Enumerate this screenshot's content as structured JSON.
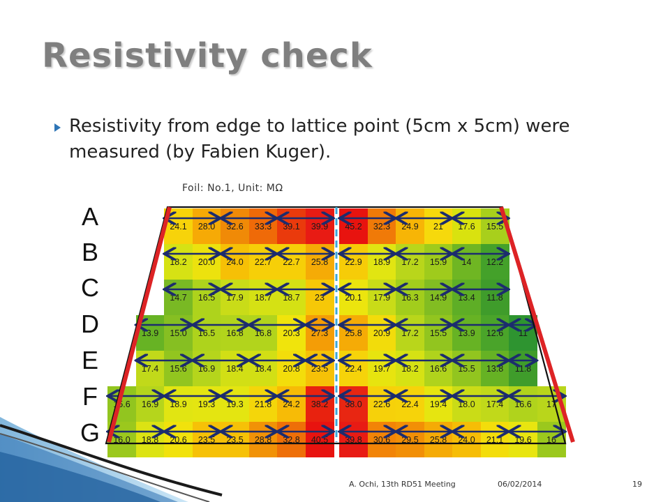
{
  "title": "Resistivity check",
  "bullet": "Resistivity from edge to lattice point (5cm x 5cm) were measured (by Fabien Kuger).",
  "caption": "Foil: No.1, Unit: MΩ",
  "rows": [
    {
      "label": "A",
      "left": [
        "24.1",
        "28.0",
        "32.6",
        "33.3",
        "39.1",
        "39.9"
      ],
      "right": [
        "45.2",
        "32.3",
        "24.9",
        "21",
        "17.6",
        "15.5"
      ],
      "left_colors": [
        "#f7d30a",
        "#f6aa06",
        "#f08a07",
        "#ef6a08",
        "#ea3a0c",
        "#e81b14"
      ],
      "right_colors": [
        "#e8130f",
        "#f07a08",
        "#f7b506",
        "#f6d90c",
        "#d9e20f",
        "#a8cf1c"
      ]
    },
    {
      "label": "B",
      "left": [
        "18.2",
        "20.0",
        "24.0",
        "22.7",
        "22.7",
        "25.8"
      ],
      "right": [
        "22.9",
        "18.9",
        "17.2",
        "15.9",
        "14",
        "12.2"
      ],
      "left_colors": [
        "#d6e214",
        "#ece20e",
        "#f6c006",
        "#f6cf08",
        "#f6cf08",
        "#f5ab06"
      ],
      "right_colors": [
        "#f6cc08",
        "#e1e512",
        "#b9d61b",
        "#9fcb1c",
        "#6fb623",
        "#44a12a"
      ]
    },
    {
      "label": "C",
      "left": [
        "14.7",
        "16.5",
        "17.9",
        "18.7",
        "18.7",
        "23"
      ],
      "right": [
        "20.1",
        "17.9",
        "16.3",
        "14.9",
        "13.4",
        "11.8"
      ],
      "left_colors": [
        "#79b924",
        "#aed31c",
        "#c9dc18",
        "#d5e114",
        "#d5e114",
        "#f6c807"
      ],
      "right_colors": [
        "#ece50e",
        "#c9dc18",
        "#a2cd1c",
        "#82bd22",
        "#5eae26",
        "#3f9c2b"
      ]
    },
    {
      "label": "D",
      "left": [
        "13.9",
        "15.0",
        "16.5",
        "16.8",
        "16.8",
        "20.3",
        "27.3"
      ],
      "right": [
        "25.8",
        "20.9",
        "17.2",
        "15.5",
        "13.9",
        "12.6",
        "11"
      ],
      "left_colors": [
        "#67b324",
        "#86bf22",
        "#aed31c",
        "#b2d41c",
        "#b2d41c",
        "#f0e40c",
        "#f49d06"
      ],
      "right_colors": [
        "#f5ab06",
        "#f2dc0b",
        "#b9d61b",
        "#92c51f",
        "#67b324",
        "#4aa42a",
        "#2e9430"
      ]
    },
    {
      "label": "E",
      "left": [
        "17.4",
        "15.6",
        "16.9",
        "18.4",
        "18.4",
        "20.8",
        "23.5"
      ],
      "right": [
        "22.4",
        "19.7",
        "18.2",
        "16.6",
        "15.5",
        "13.8",
        "11.8"
      ],
      "left_colors": [
        "#c1d91a",
        "#92c51f",
        "#b5d51c",
        "#d2df15",
        "#d2df15",
        "#f3dd0b",
        "#f6c107"
      ],
      "right_colors": [
        "#f6d30a",
        "#e7e40f",
        "#d6e214",
        "#b0d31c",
        "#92c51f",
        "#66b224",
        "#3f9c2b"
      ]
    },
    {
      "label": "F",
      "left": [
        "15.6",
        "16.9",
        "18.9",
        "19.3",
        "19.3",
        "21.8",
        "24.2",
        "38.2"
      ],
      "right": [
        "38.0",
        "22.6",
        "22.4",
        "19.4",
        "18.0",
        "17.4",
        "16.6",
        "17"
      ],
      "left_colors": [
        "#92c51f",
        "#b5d51c",
        "#e1e512",
        "#e4e511",
        "#e4e511",
        "#f4d60a",
        "#f7bb06",
        "#e8220f"
      ],
      "right_colors": [
        "#e82612",
        "#f6d10a",
        "#f6d30a",
        "#e6e510",
        "#cadc17",
        "#c1d91a",
        "#b0d31c",
        "#b9d61b"
      ]
    },
    {
      "label": "G",
      "left": [
        "16.0",
        "18.8",
        "20.6",
        "23.5",
        "23.5",
        "28.8",
        "32.8",
        "40.5"
      ],
      "right": [
        "39.8",
        "30.6",
        "29.5",
        "25.8",
        "24.0",
        "21.1",
        "19.6",
        "16"
      ],
      "left_colors": [
        "#9bc81d",
        "#dce313",
        "#f1e20c",
        "#f6c107",
        "#f6c107",
        "#f19207",
        "#ee6f08",
        "#e8130f"
      ],
      "right_colors": [
        "#e81b14",
        "#f28407",
        "#f28f06",
        "#f5ab06",
        "#f6bd06",
        "#f3dd0b",
        "#e8e510",
        "#9bc81d"
      ]
    }
  ],
  "footer": {
    "author": "A. Ochi,  13th RD51 Meeting",
    "date": "06/02/2014",
    "page": "19"
  },
  "colors": {
    "frame": "#111111",
    "red_edge": "#dd2325",
    "center_line": "#3aa6d8",
    "arrow": "#1c2c6e",
    "bullet": "#2e75b6",
    "title": "#7f7f7f"
  }
}
